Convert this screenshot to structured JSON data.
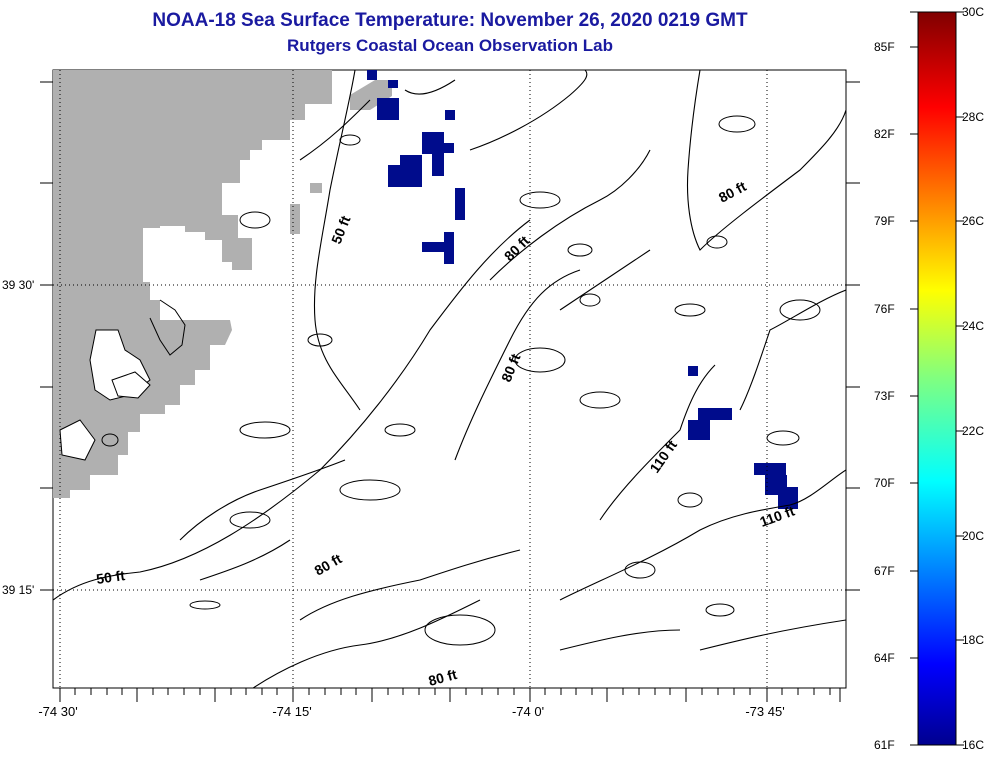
{
  "title": {
    "line1": "NOAA-18 Sea Surface Temperature:  November 26, 2020 0219 GMT",
    "line2": "Rutgers Coastal Ocean Observation Lab"
  },
  "axes": {
    "lat_labels": [
      "39 30'",
      "39 15'"
    ],
    "lon_labels": [
      "-74 30'",
      "-74 15'",
      "-74 0'",
      "-73 45'"
    ]
  },
  "contour_labels": [
    "50 ft",
    "50 ft",
    "80 ft",
    "80 ft",
    "80 ft",
    "80 ft",
    "80 ft",
    "110 ft",
    "110 ft"
  ],
  "colorbar": {
    "fahrenheit": [
      "85F",
      "82F",
      "79F",
      "76F",
      "73F",
      "70F",
      "67F",
      "64F",
      "61F"
    ],
    "celsius": [
      "30C",
      "28C",
      "26C",
      "24C",
      "22C",
      "20C",
      "18C",
      "16C"
    ]
  },
  "colors": {
    "title": "#1a1aa0",
    "land": "#b0b0b0",
    "sst_cold": "#000c8c",
    "contour": "#000000"
  }
}
